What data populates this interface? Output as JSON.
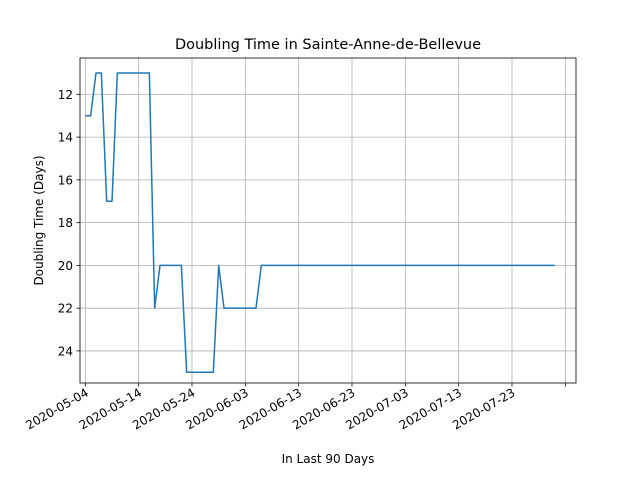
{
  "chart_data": {
    "type": "line",
    "title": "Doubling Time in  Sainte-Anne-de-Bellevue",
    "xlabel": "In Last 90 Days",
    "ylabel": "Doubling Time (Days)",
    "x_type": "date",
    "xlim": [
      "2020-05-03",
      "2020-08-04"
    ],
    "ylim": [
      25.5,
      10.3
    ],
    "y_inverted": true,
    "grid": true,
    "x_ticks": [
      "2020-05-04",
      "2020-05-14",
      "2020-05-24",
      "2020-06-03",
      "2020-06-13",
      "2020-06-23",
      "2020-07-03",
      "2020-07-13",
      "2020-07-23",
      "2020-08-02"
    ],
    "x_tick_labels": [
      "2020-05-04",
      "2020-05-14",
      "2020-05-24",
      "2020-06-03",
      "2020-06-13",
      "2020-06-23",
      "2020-07-03",
      "2020-07-13",
      "2020-07-23",
      ""
    ],
    "y_ticks": [
      12,
      14,
      16,
      18,
      20,
      22,
      24
    ],
    "series": [
      {
        "color": "#1f77b4",
        "x": [
          "2020-05-04",
          "2020-05-05",
          "2020-05-06",
          "2020-05-07",
          "2020-05-08",
          "2020-05-09",
          "2020-05-10",
          "2020-05-11",
          "2020-05-12",
          "2020-05-13",
          "2020-05-14",
          "2020-05-15",
          "2020-05-16",
          "2020-05-17",
          "2020-05-18",
          "2020-05-19",
          "2020-05-20",
          "2020-05-21",
          "2020-05-22",
          "2020-05-23",
          "2020-05-24",
          "2020-05-25",
          "2020-05-26",
          "2020-05-27",
          "2020-05-28",
          "2020-05-29",
          "2020-05-30",
          "2020-05-31",
          "2020-06-01",
          "2020-06-02",
          "2020-06-03",
          "2020-06-04",
          "2020-06-05",
          "2020-06-06",
          "2020-07-31"
        ],
        "y": [
          13,
          13,
          11,
          11,
          17,
          17,
          11,
          11,
          11,
          11,
          11,
          11,
          11,
          22,
          20,
          20,
          20,
          20,
          20,
          25,
          25,
          25,
          25,
          25,
          25,
          20,
          22,
          22,
          22,
          22,
          22,
          22,
          22,
          20,
          20
        ]
      }
    ]
  }
}
